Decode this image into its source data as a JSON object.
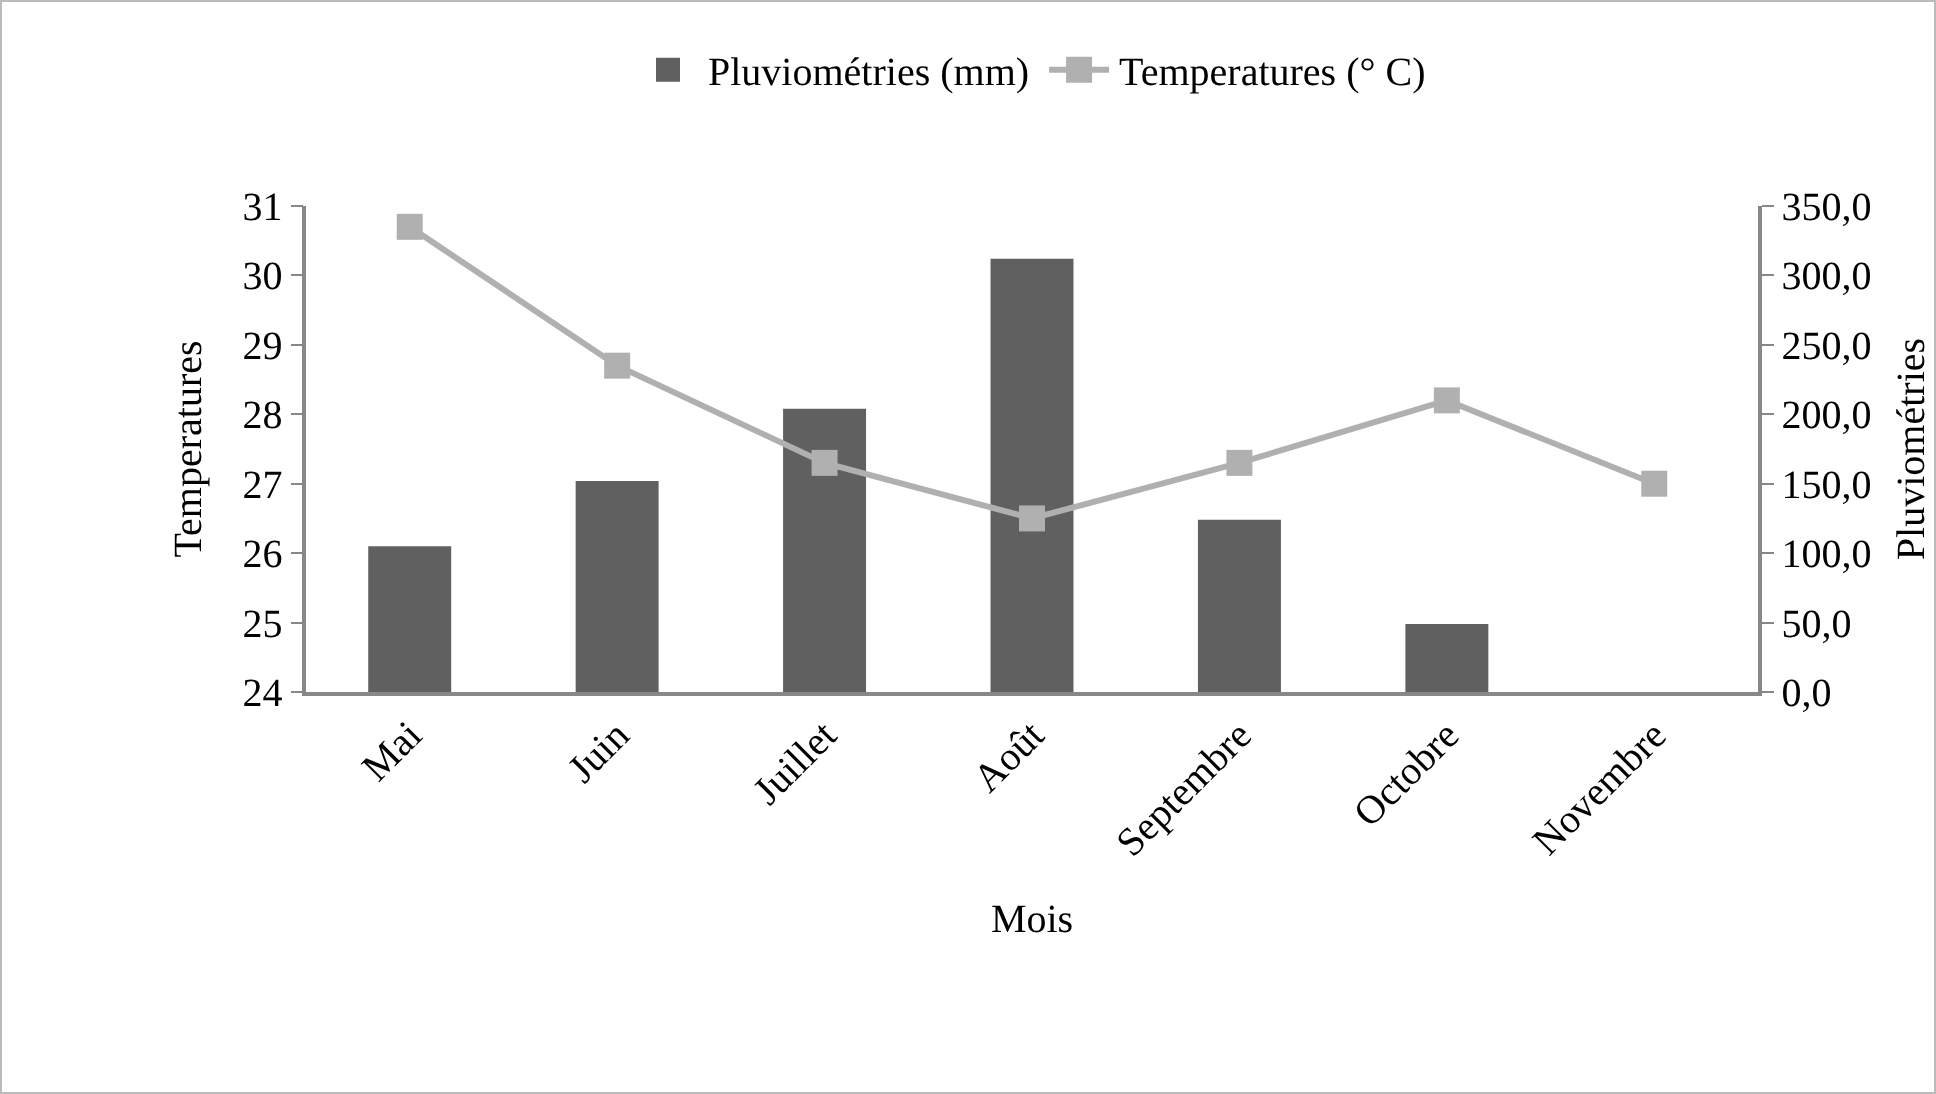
{
  "chart_data": {
    "type": "bar",
    "xlabel": "Mois",
    "ylabel": "Temperatures",
    "y2label": "Pluviométries",
    "categories": [
      "Mai",
      "Juin",
      "Juillet",
      "Août",
      "Septembre",
      "Octobre",
      "Novembre"
    ],
    "series": [
      {
        "name": "Pluviométries (mm)",
        "axis": "y2",
        "color": "#606060",
        "values": [
          105,
          152,
          204,
          312,
          124,
          49,
          null
        ]
      },
      {
        "name": "Temperatures (° C)",
        "type": "line",
        "axis": "y",
        "color": "#b0b0b0",
        "marker": "square",
        "values": [
          30.7,
          28.7,
          27.3,
          26.5,
          27.3,
          28.2,
          27.0
        ]
      }
    ],
    "ylim": [
      24,
      31
    ],
    "yticks": [
      24,
      25,
      26,
      27,
      28,
      29,
      30,
      31
    ],
    "y2lim": [
      0,
      350
    ],
    "y2ticks": [
      {
        "value": 0,
        "label": "0,0"
      },
      {
        "value": 50,
        "label": "50,0"
      },
      {
        "value": 100,
        "label": "100,0"
      },
      {
        "value": 150,
        "label": "150,0"
      },
      {
        "value": 200,
        "label": "200,0"
      },
      {
        "value": 250,
        "label": "250,0"
      },
      {
        "value": 300,
        "label": "300,0"
      },
      {
        "value": 350,
        "label": "350,0"
      }
    ],
    "grid": false,
    "legend": "top"
  }
}
